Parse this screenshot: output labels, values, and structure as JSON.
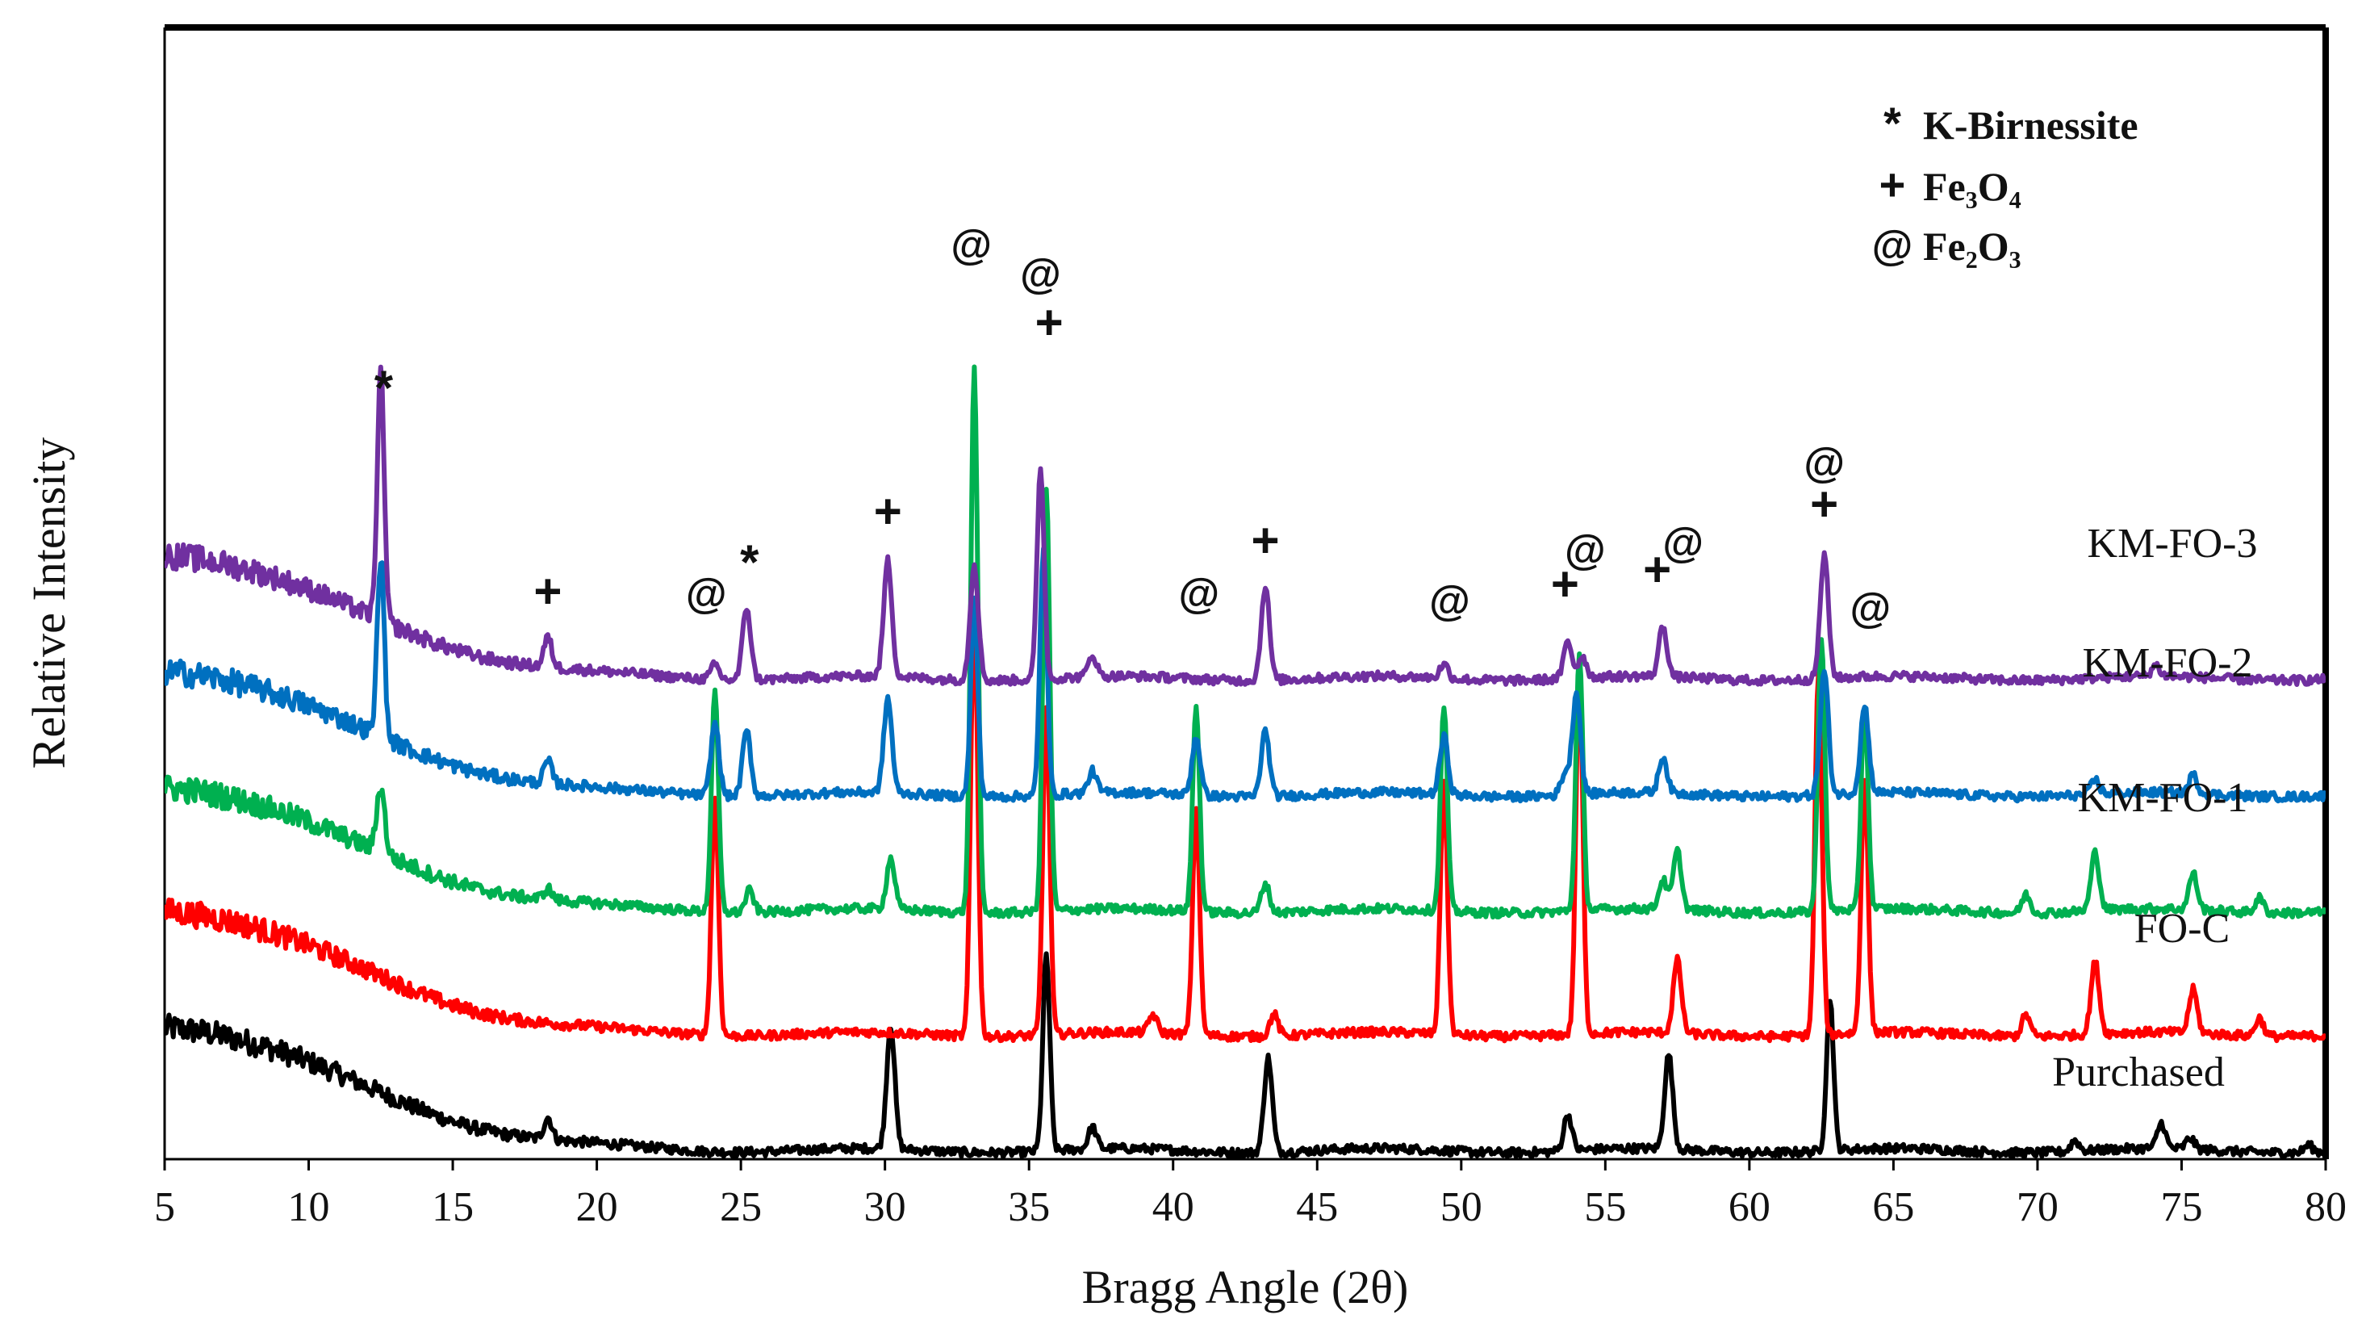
{
  "chart_data": {
    "type": "line",
    "xlabel": "Bragg Angle (2θ)",
    "ylabel": "Relative Intensity",
    "xlim": [
      5,
      80
    ],
    "xticks": [
      5,
      10,
      15,
      20,
      25,
      30,
      35,
      40,
      45,
      50,
      55,
      60,
      65,
      70,
      75,
      80
    ],
    "grid": false,
    "y_axis_ticks": false,
    "legend": [
      {
        "symbol": "*",
        "text": "K-Birnessite"
      },
      {
        "symbol": "+",
        "text": "Fe₃O₄"
      },
      {
        "symbol": "@",
        "text": "Fe₂O₃"
      }
    ],
    "legend_position": "top-right",
    "series": [
      {
        "name": "Purchased",
        "color": "#000000",
        "baseline": 0.0,
        "bump": 0.17,
        "peaks": [
          [
            18.3,
            0.03
          ],
          [
            30.2,
            0.17
          ],
          [
            35.6,
            0.27
          ],
          [
            37.2,
            0.03
          ],
          [
            43.3,
            0.13
          ],
          [
            53.7,
            0.05
          ],
          [
            57.2,
            0.13
          ],
          [
            62.8,
            0.21
          ],
          [
            71.3,
            0.015
          ],
          [
            74.3,
            0.035
          ],
          [
            75.3,
            0.015
          ],
          [
            79.4,
            0.01
          ]
        ]
      },
      {
        "name": "FO-C",
        "color": "#ff0000",
        "baseline": 0.16,
        "bump": 0.17,
        "peaks": [
          [
            24.1,
            0.33
          ],
          [
            33.1,
            0.6
          ],
          [
            35.6,
            0.45
          ],
          [
            39.3,
            0.025
          ],
          [
            40.8,
            0.31
          ],
          [
            43.5,
            0.03
          ],
          [
            49.4,
            0.35
          ],
          [
            54.1,
            0.5
          ],
          [
            57.5,
            0.1
          ],
          [
            62.4,
            0.5
          ],
          [
            64.0,
            0.35
          ],
          [
            69.6,
            0.03
          ],
          [
            72.0,
            0.1
          ],
          [
            75.4,
            0.06
          ],
          [
            77.7,
            0.025
          ]
        ]
      },
      {
        "name": "KM-FO-1",
        "color": "#00b050",
        "baseline": 0.33,
        "bump": 0.17,
        "peaks": [
          [
            12.5,
            0.09
          ],
          [
            18.3,
            0.015
          ],
          [
            24.1,
            0.3
          ],
          [
            25.3,
            0.03
          ],
          [
            30.2,
            0.07
          ],
          [
            33.1,
            0.75
          ],
          [
            35.6,
            0.58
          ],
          [
            40.8,
            0.28
          ],
          [
            43.2,
            0.04
          ],
          [
            49.4,
            0.28
          ],
          [
            54.1,
            0.35
          ],
          [
            57.0,
            0.04
          ],
          [
            57.5,
            0.08
          ],
          [
            62.5,
            0.38
          ],
          [
            64.0,
            0.28
          ],
          [
            69.6,
            0.025
          ],
          [
            72.0,
            0.08
          ],
          [
            75.4,
            0.05
          ],
          [
            77.7,
            0.02
          ]
        ]
      },
      {
        "name": "KM-FO-2",
        "color": "#0070c0",
        "baseline": 0.49,
        "bump": 0.17,
        "peaks": [
          [
            12.5,
            0.25
          ],
          [
            18.3,
            0.03
          ],
          [
            24.1,
            0.1
          ],
          [
            25.2,
            0.09
          ],
          [
            30.1,
            0.13
          ],
          [
            33.1,
            0.27
          ],
          [
            35.5,
            0.34
          ],
          [
            37.2,
            0.03
          ],
          [
            40.8,
            0.08
          ],
          [
            43.2,
            0.09
          ],
          [
            49.4,
            0.08
          ],
          [
            53.6,
            0.03
          ],
          [
            54.0,
            0.14
          ],
          [
            57.0,
            0.05
          ],
          [
            62.6,
            0.17
          ],
          [
            64.0,
            0.12
          ],
          [
            72.0,
            0.02
          ],
          [
            75.4,
            0.025
          ]
        ]
      },
      {
        "name": "KM-FO-3",
        "color": "#7030a0",
        "baseline": 0.65,
        "bump": 0.17,
        "peaks": [
          [
            12.5,
            0.34
          ],
          [
            18.3,
            0.04
          ],
          [
            24.1,
            0.02
          ],
          [
            25.2,
            0.1
          ],
          [
            30.1,
            0.16
          ],
          [
            33.1,
            0.16
          ],
          [
            35.4,
            0.29
          ],
          [
            37.2,
            0.03
          ],
          [
            43.2,
            0.13
          ],
          [
            49.4,
            0.02
          ],
          [
            53.7,
            0.05
          ],
          [
            54.2,
            0.03
          ],
          [
            57.0,
            0.07
          ],
          [
            62.6,
            0.17
          ],
          [
            74.1,
            0.015
          ]
        ]
      }
    ],
    "annotations": [
      {
        "text": "*",
        "x": 12.6,
        "y": 1.03
      },
      {
        "text": "+",
        "x": 18.3,
        "y": 0.75
      },
      {
        "text": "@",
        "x": 23.8,
        "y": 0.75
      },
      {
        "text": "*",
        "x": 25.3,
        "y": 0.79
      },
      {
        "text": "+",
        "x": 30.1,
        "y": 0.86
      },
      {
        "text": "@",
        "x": 33.0,
        "y": 1.23
      },
      {
        "text": "@",
        "x": 35.4,
        "y": 1.19
      },
      {
        "text": "+",
        "x": 35.7,
        "y": 1.12
      },
      {
        "text": "@",
        "x": 40.9,
        "y": 0.75
      },
      {
        "text": "+",
        "x": 43.2,
        "y": 0.82
      },
      {
        "text": "@",
        "x": 49.6,
        "y": 0.74
      },
      {
        "text": "+",
        "x": 53.6,
        "y": 0.76
      },
      {
        "text": "@",
        "x": 54.3,
        "y": 0.81
      },
      {
        "text": "+",
        "x": 56.8,
        "y": 0.78
      },
      {
        "text": "@",
        "x": 57.7,
        "y": 0.82
      },
      {
        "text": "@",
        "x": 62.6,
        "y": 0.93
      },
      {
        "text": "+",
        "x": 62.6,
        "y": 0.87
      },
      {
        "text": "@",
        "x": 64.2,
        "y": 0.73
      }
    ]
  }
}
